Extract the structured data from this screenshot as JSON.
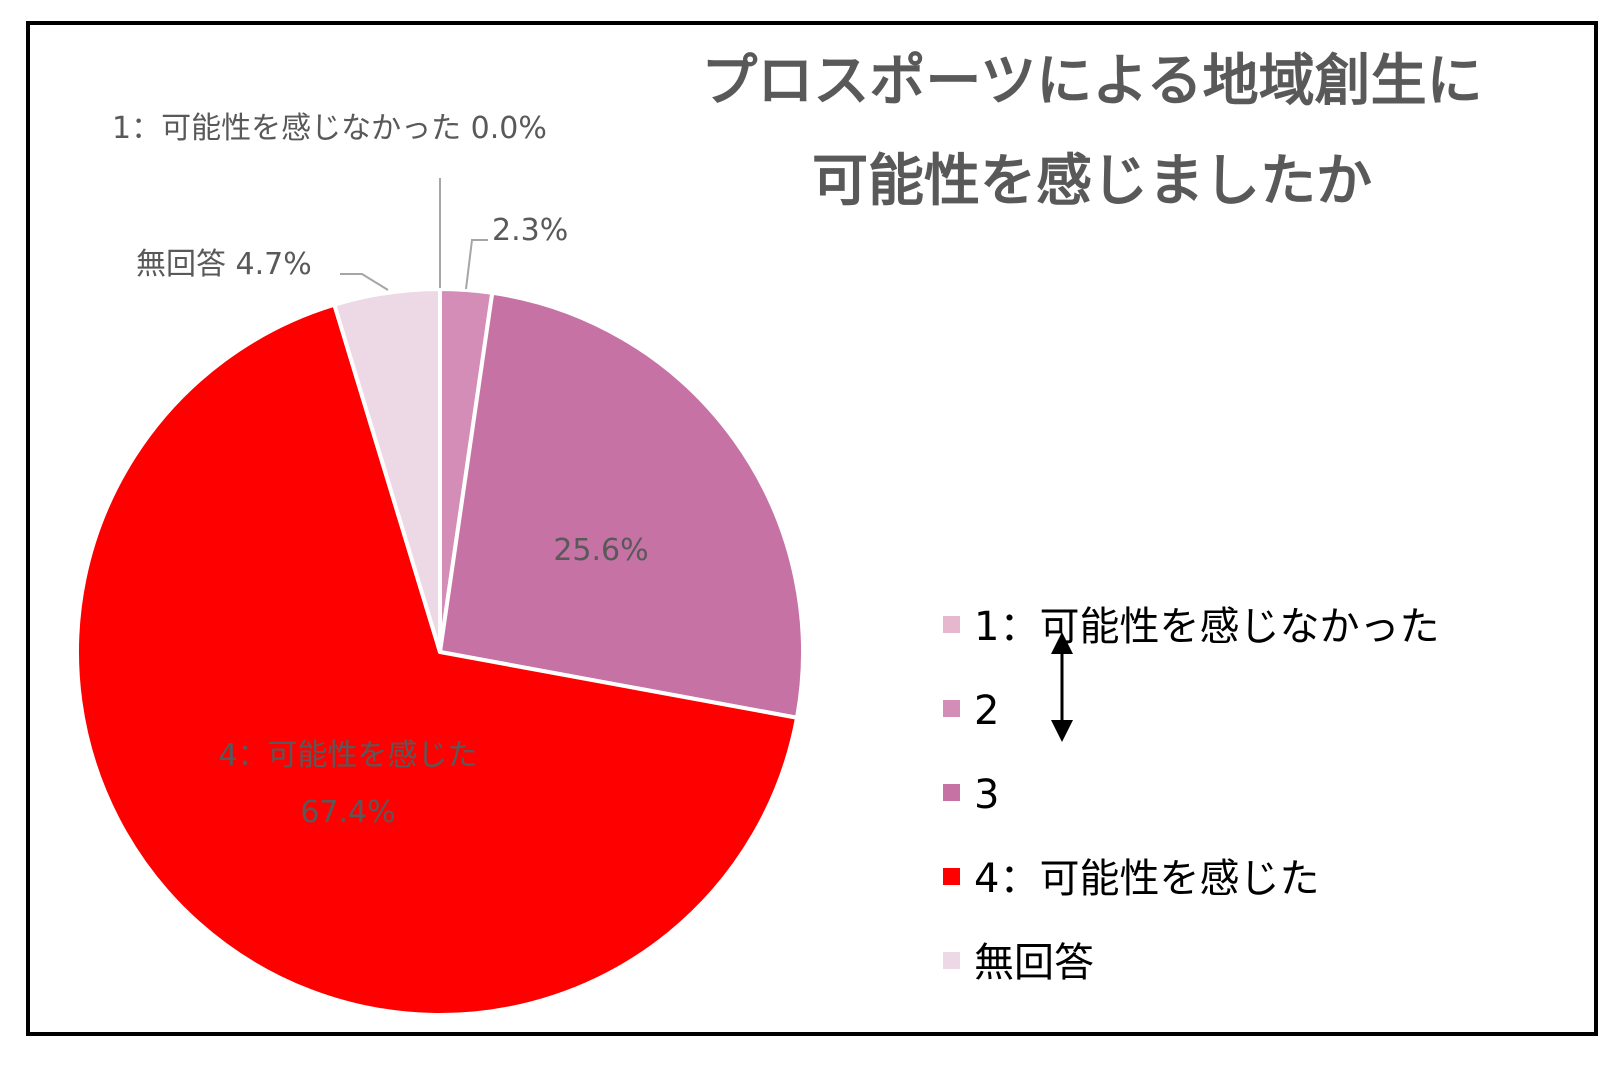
{
  "chart_data": {
    "type": "pie",
    "title_lines": [
      "プロスポーツによる地域創生に",
      "可能性を感じましたか"
    ],
    "unit": "%",
    "slices": [
      {
        "label": "1：可能性を感じなかった",
        "value": 0.0,
        "value_text": "0.0%",
        "color": "#E6B8D0"
      },
      {
        "label": "2",
        "value": 2.3,
        "value_text": "2.3%",
        "color": "#D48DB6"
      },
      {
        "label": "3",
        "value": 25.6,
        "value_text": "25.6%",
        "color": "#C672A4"
      },
      {
        "label": "4：可能性を感じた",
        "value": 67.4,
        "value_text": "67.4%",
        "color": "#FF0000"
      },
      {
        "label": "無回答",
        "value": 4.7,
        "value_text": "4.7%",
        "color": "#EDD9E6"
      }
    ],
    "legend_placement": "right"
  }
}
